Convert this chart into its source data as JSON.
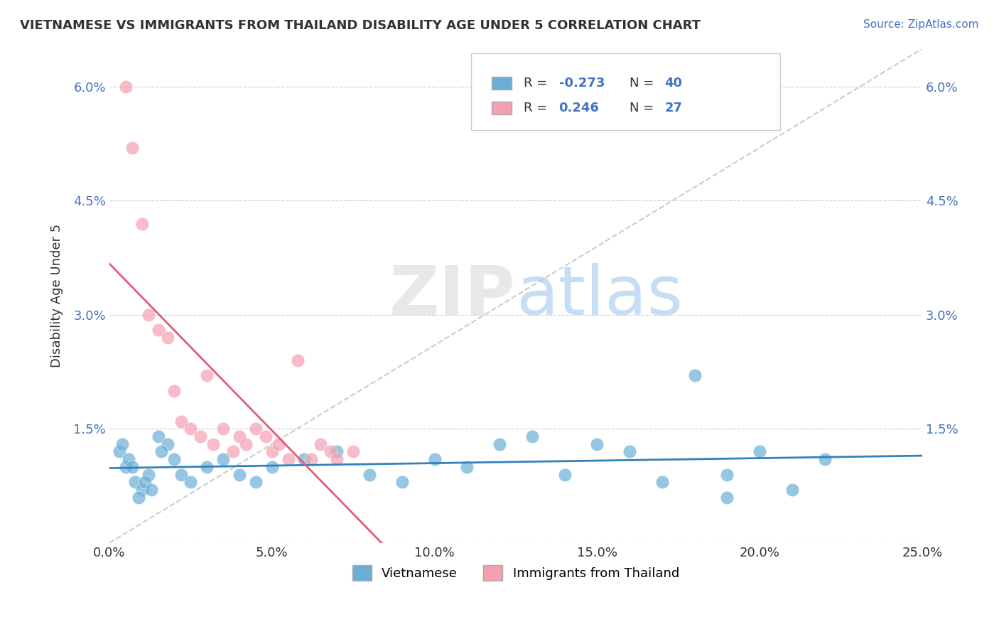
{
  "title": "VIETNAMESE VS IMMIGRANTS FROM THAILAND DISABILITY AGE UNDER 5 CORRELATION CHART",
  "source": "Source: ZipAtlas.com",
  "xlabel": "",
  "ylabel": "Disability Age Under 5",
  "xlim": [
    0.0,
    0.25
  ],
  "ylim": [
    0.0,
    0.065
  ],
  "xticks": [
    0.0,
    0.05,
    0.1,
    0.15,
    0.2,
    0.25
  ],
  "yticks": [
    0.0,
    0.015,
    0.03,
    0.045,
    0.06
  ],
  "xticklabels": [
    "0.0%",
    "5.0%",
    "10.0%",
    "15.0%",
    "20.0%",
    "25.0%"
  ],
  "yticklabels": [
    "",
    "1.5%",
    "3.0%",
    "4.5%",
    "6.0%"
  ],
  "legend_labels": [
    "Vietnamese",
    "Immigrants from Thailand"
  ],
  "r_vietnamese": -0.273,
  "n_vietnamese": 40,
  "r_thailand": 0.246,
  "n_thailand": 27,
  "blue_color": "#6baed6",
  "pink_color": "#f4a0b0",
  "blue_line_color": "#3182bd",
  "pink_line_color": "#e05c7a",
  "scatter_blue": [
    [
      0.005,
      0.01
    ],
    [
      0.003,
      0.012
    ],
    [
      0.008,
      0.008
    ],
    [
      0.01,
      0.007
    ],
    [
      0.012,
      0.009
    ],
    [
      0.006,
      0.011
    ],
    [
      0.004,
      0.013
    ],
    [
      0.009,
      0.006
    ],
    [
      0.011,
      0.008
    ],
    [
      0.015,
      0.014
    ],
    [
      0.018,
      0.013
    ],
    [
      0.007,
      0.01
    ],
    [
      0.013,
      0.007
    ],
    [
      0.016,
      0.012
    ],
    [
      0.02,
      0.011
    ],
    [
      0.022,
      0.009
    ],
    [
      0.025,
      0.008
    ],
    [
      0.03,
      0.01
    ],
    [
      0.035,
      0.011
    ],
    [
      0.04,
      0.009
    ],
    [
      0.045,
      0.008
    ],
    [
      0.05,
      0.01
    ],
    [
      0.06,
      0.011
    ],
    [
      0.07,
      0.012
    ],
    [
      0.08,
      0.009
    ],
    [
      0.09,
      0.008
    ],
    [
      0.1,
      0.011
    ],
    [
      0.11,
      0.01
    ],
    [
      0.12,
      0.013
    ],
    [
      0.13,
      0.014
    ],
    [
      0.14,
      0.009
    ],
    [
      0.15,
      0.013
    ],
    [
      0.16,
      0.012
    ],
    [
      0.17,
      0.008
    ],
    [
      0.18,
      0.022
    ],
    [
      0.19,
      0.009
    ],
    [
      0.2,
      0.012
    ],
    [
      0.21,
      0.007
    ],
    [
      0.22,
      0.011
    ],
    [
      0.19,
      0.006
    ]
  ],
  "scatter_pink": [
    [
      0.005,
      0.06
    ],
    [
      0.007,
      0.052
    ],
    [
      0.01,
      0.042
    ],
    [
      0.012,
      0.03
    ],
    [
      0.015,
      0.028
    ],
    [
      0.018,
      0.027
    ],
    [
      0.02,
      0.02
    ],
    [
      0.022,
      0.016
    ],
    [
      0.025,
      0.015
    ],
    [
      0.028,
      0.014
    ],
    [
      0.03,
      0.022
    ],
    [
      0.032,
      0.013
    ],
    [
      0.035,
      0.015
    ],
    [
      0.038,
      0.012
    ],
    [
      0.04,
      0.014
    ],
    [
      0.042,
      0.013
    ],
    [
      0.045,
      0.015
    ],
    [
      0.048,
      0.014
    ],
    [
      0.05,
      0.012
    ],
    [
      0.052,
      0.013
    ],
    [
      0.055,
      0.011
    ],
    [
      0.058,
      0.024
    ],
    [
      0.062,
      0.011
    ],
    [
      0.065,
      0.013
    ],
    [
      0.068,
      0.012
    ],
    [
      0.07,
      0.011
    ],
    [
      0.075,
      0.012
    ]
  ]
}
